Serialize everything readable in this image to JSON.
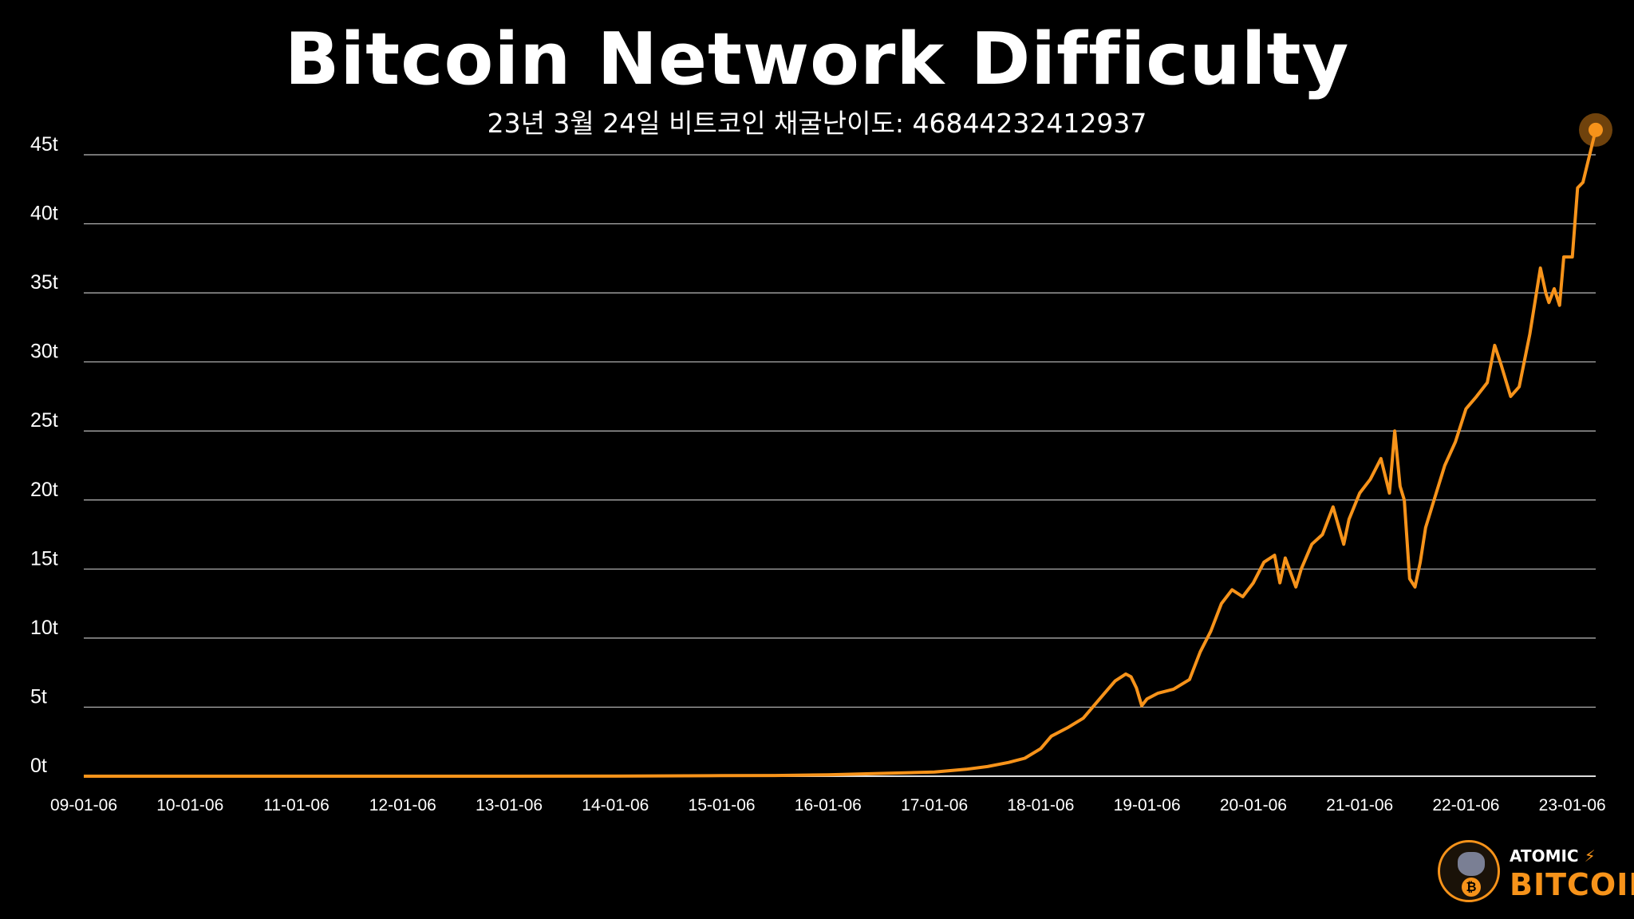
{
  "header": {
    "title": "Bitcoin Network Difficulty",
    "subtitle": "23년 3월 24일 비트코인 채굴난이도: 46844232412937"
  },
  "logo": {
    "top_text": "ATOMIC",
    "bolt_icon": "⚡",
    "bottom_text": "BITCOIN",
    "coin_icon": "₿"
  },
  "colors": {
    "background": "#000000",
    "line": "#f7931a",
    "grid": "#bbbbbb",
    "text": "#ffffff"
  },
  "chart_data": {
    "type": "line",
    "title": "Bitcoin Network Difficulty",
    "subtitle": "23년 3월 24일 비트코인 채굴난이도: 46844232412937",
    "xlabel": "",
    "ylabel": "",
    "xlim": [
      2009.0,
      2023.22
    ],
    "ylim": [
      0,
      45
    ],
    "grid": true,
    "legend": "none",
    "y_ticks": [
      {
        "value": 0,
        "label": "0t"
      },
      {
        "value": 5,
        "label": "5t"
      },
      {
        "value": 10,
        "label": "10t"
      },
      {
        "value": 15,
        "label": "15t"
      },
      {
        "value": 20,
        "label": "20t"
      },
      {
        "value": 25,
        "label": "25t"
      },
      {
        "value": 30,
        "label": "30t"
      },
      {
        "value": 35,
        "label": "35t"
      },
      {
        "value": 40,
        "label": "40t"
      },
      {
        "value": 45,
        "label": "45t"
      }
    ],
    "x_ticks": [
      {
        "value": 2009,
        "label": "09-01-06"
      },
      {
        "value": 2010,
        "label": "10-01-06"
      },
      {
        "value": 2011,
        "label": "11-01-06"
      },
      {
        "value": 2012,
        "label": "12-01-06"
      },
      {
        "value": 2013,
        "label": "13-01-06"
      },
      {
        "value": 2014,
        "label": "14-01-06"
      },
      {
        "value": 2015,
        "label": "15-01-06"
      },
      {
        "value": 2016,
        "label": "16-01-06"
      },
      {
        "value": 2017,
        "label": "17-01-06"
      },
      {
        "value": 2018,
        "label": "18-01-06"
      },
      {
        "value": 2019,
        "label": "19-01-06"
      },
      {
        "value": 2020,
        "label": "20-01-06"
      },
      {
        "value": 2021,
        "label": "21-01-06"
      },
      {
        "value": 2022,
        "label": "22-01-06"
      },
      {
        "value": 2023,
        "label": "23-01-06"
      }
    ],
    "series": [
      {
        "name": "",
        "points": [
          [
            2009.0,
            0
          ],
          [
            2013.0,
            0.0
          ],
          [
            2014.0,
            0.005
          ],
          [
            2015.0,
            0.04
          ],
          [
            2015.5,
            0.05
          ],
          [
            2016.0,
            0.1
          ],
          [
            2016.5,
            0.2
          ],
          [
            2017.0,
            0.3
          ],
          [
            2017.3,
            0.5
          ],
          [
            2017.5,
            0.7
          ],
          [
            2017.7,
            1.0
          ],
          [
            2017.85,
            1.3
          ],
          [
            2018.0,
            2.0
          ],
          [
            2018.1,
            2.9
          ],
          [
            2018.25,
            3.5
          ],
          [
            2018.4,
            4.2
          ],
          [
            2018.5,
            5.1
          ],
          [
            2018.6,
            6.0
          ],
          [
            2018.7,
            6.9
          ],
          [
            2018.8,
            7.4
          ],
          [
            2018.85,
            7.2
          ],
          [
            2018.9,
            6.4
          ],
          [
            2018.95,
            5.1
          ],
          [
            2019.0,
            5.6
          ],
          [
            2019.1,
            6.0
          ],
          [
            2019.25,
            6.3
          ],
          [
            2019.4,
            7.0
          ],
          [
            2019.5,
            9.0
          ],
          [
            2019.6,
            10.5
          ],
          [
            2019.7,
            12.5
          ],
          [
            2019.8,
            13.5
          ],
          [
            2019.9,
            13.0
          ],
          [
            2020.0,
            14.0
          ],
          [
            2020.1,
            15.5
          ],
          [
            2020.2,
            16.0
          ],
          [
            2020.25,
            14.0
          ],
          [
            2020.3,
            15.8
          ],
          [
            2020.4,
            13.7
          ],
          [
            2020.45,
            15.0
          ],
          [
            2020.55,
            16.8
          ],
          [
            2020.65,
            17.5
          ],
          [
            2020.75,
            19.5
          ],
          [
            2020.85,
            16.8
          ],
          [
            2020.9,
            18.6
          ],
          [
            2021.0,
            20.5
          ],
          [
            2021.1,
            21.5
          ],
          [
            2021.2,
            23.0
          ],
          [
            2021.28,
            20.5
          ],
          [
            2021.33,
            25.0
          ],
          [
            2021.38,
            21.0
          ],
          [
            2021.42,
            20.0
          ],
          [
            2021.47,
            14.3
          ],
          [
            2021.52,
            13.7
          ],
          [
            2021.57,
            15.5
          ],
          [
            2021.62,
            18.0
          ],
          [
            2021.7,
            20.0
          ],
          [
            2021.8,
            22.5
          ],
          [
            2021.9,
            24.2
          ],
          [
            2022.0,
            26.6
          ],
          [
            2022.1,
            27.5
          ],
          [
            2022.2,
            28.5
          ],
          [
            2022.27,
            31.2
          ],
          [
            2022.33,
            29.8
          ],
          [
            2022.42,
            27.5
          ],
          [
            2022.5,
            28.2
          ],
          [
            2022.6,
            32.0
          ],
          [
            2022.7,
            36.8
          ],
          [
            2022.75,
            35.0
          ],
          [
            2022.78,
            34.3
          ],
          [
            2022.83,
            35.3
          ],
          [
            2022.88,
            34.1
          ],
          [
            2022.92,
            37.6
          ],
          [
            2023.0,
            37.6
          ],
          [
            2023.05,
            42.6
          ],
          [
            2023.1,
            43.0
          ],
          [
            2023.22,
            46.8
          ]
        ]
      }
    ],
    "annotation": {
      "type": "marker",
      "at": [
        2023.22,
        46.8
      ]
    }
  }
}
